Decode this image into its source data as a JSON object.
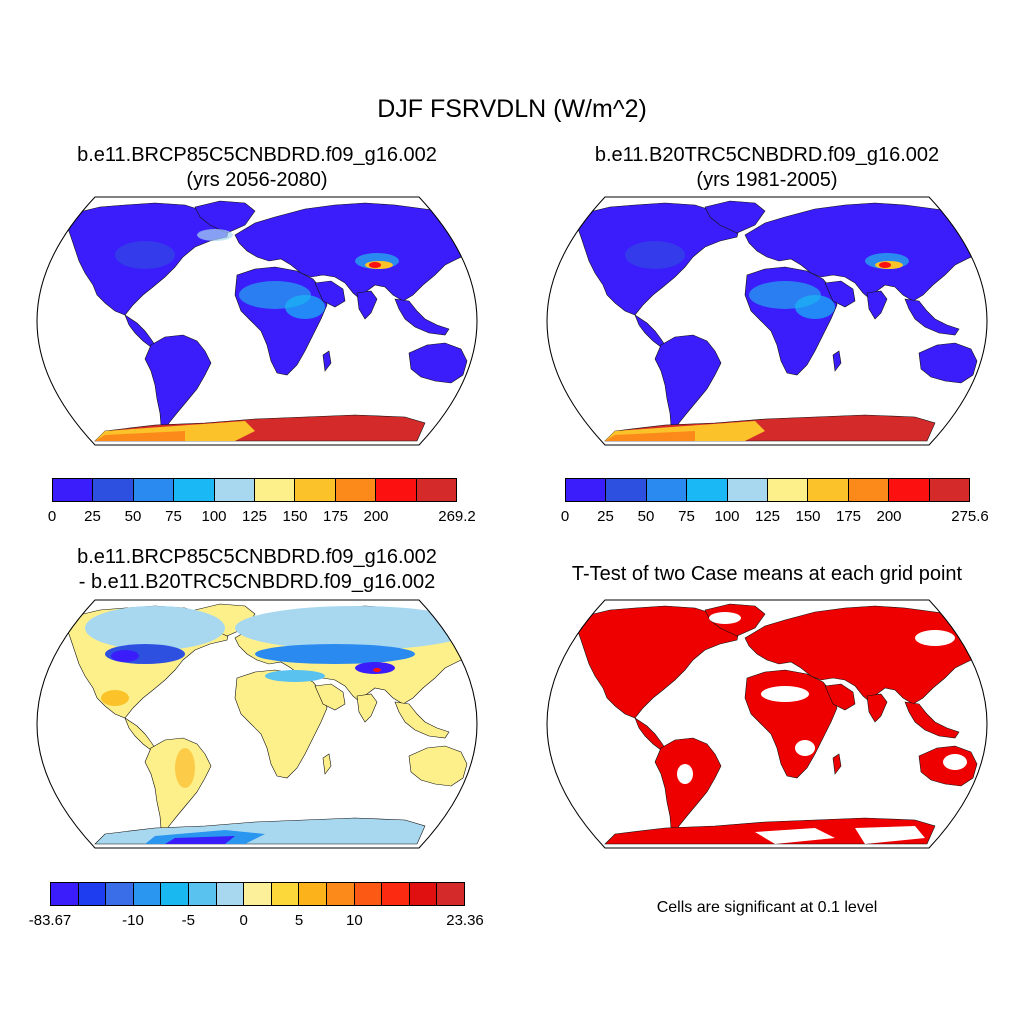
{
  "title": "DJF FSRVDLN (W/m^2)",
  "panels": [
    {
      "line1": "b.e11.BRCP85C5CNBDRD.f09_g16.002",
      "line2": "(yrs 2056-2080)"
    },
    {
      "line1": "b.e11.B20TRC5CNBDRD.f09_g16.002",
      "line2": "(yrs 1981-2005)"
    },
    {
      "line1": "b.e11.BRCP85C5CNBDRD.f09_g16.002",
      "line2": "- b.e11.B20TRC5CNBDRD.f09_g16.002"
    },
    {
      "line1": "T-Test of two Case means at each grid point"
    }
  ],
  "colorbars": [
    {
      "colors": [
        "#3a1dfa",
        "#2e50e0",
        "#2a8af0",
        "#1ab8f5",
        "#a8d8f0",
        "#fdf08a",
        "#fcc22a",
        "#fc8a1a",
        "#fc1010",
        "#d42a2a"
      ],
      "labels": [
        "0",
        "25",
        "50",
        "75",
        "100",
        "125",
        "150",
        "175",
        "200",
        "269.2"
      ]
    },
    {
      "colors": [
        "#3a1dfa",
        "#2e50e0",
        "#2a8af0",
        "#1ab8f5",
        "#a8d8f0",
        "#fdf08a",
        "#fcc22a",
        "#fc8a1a",
        "#fc1010",
        "#d42a2a"
      ],
      "labels": [
        "0",
        "25",
        "50",
        "75",
        "100",
        "125",
        "150",
        "175",
        "200",
        "275.6"
      ]
    },
    {
      "colors": [
        "#3a1dfa",
        "#1e3cf0",
        "#3a6ee8",
        "#2a96f0",
        "#1ab8f0",
        "#5ac2ee",
        "#a8d8f0",
        "#fdf09a",
        "#fcd83a",
        "#fcb21a",
        "#fc8a1a",
        "#fc5a14",
        "#fc2a10",
        "#e01010",
        "#d42a2a"
      ],
      "labels": [
        "-83.67",
        "-10",
        "-5",
        "0",
        "5",
        "10",
        "23.36"
      ]
    }
  ],
  "significance_note": "Cells are significant at 0.1 level",
  "colors": {
    "land_low": "#3a1dfa",
    "antarctica_high": "#d42a2a",
    "significant": "#ee0000"
  }
}
